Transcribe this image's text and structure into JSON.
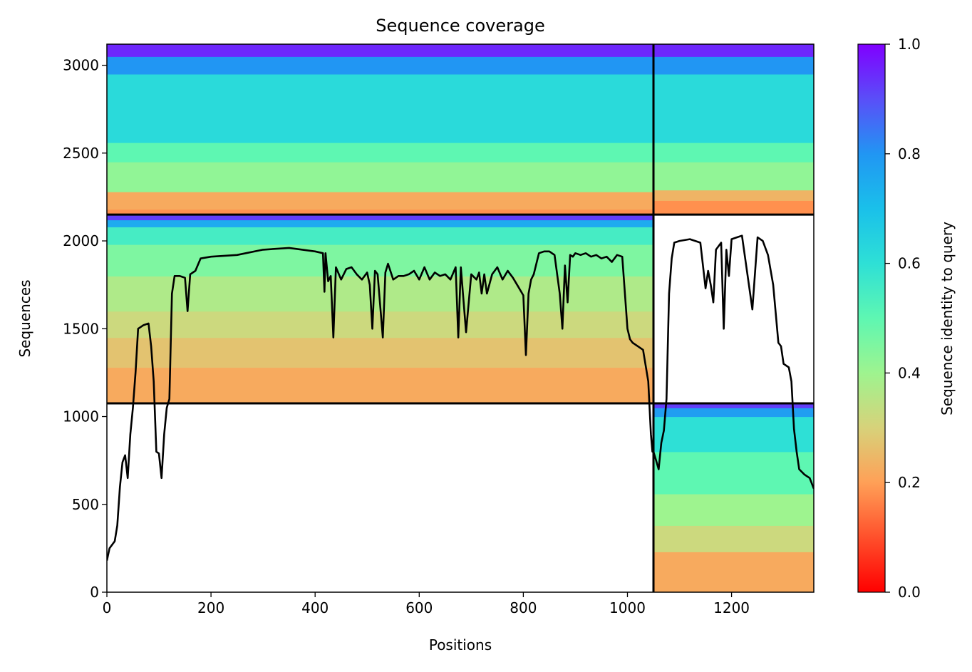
{
  "chart_data": {
    "type": "heatmap",
    "title": "Sequence coverage",
    "xlabel": "Positions",
    "ylabel": "Sequences",
    "xlim": [
      0,
      1358
    ],
    "ylim": [
      0,
      3120
    ],
    "xticks": [
      0,
      200,
      400,
      600,
      800,
      1000,
      1200
    ],
    "yticks": [
      0,
      500,
      1000,
      1500,
      2000,
      2500,
      3000
    ],
    "colorbar": {
      "label": "Sequence identity to query",
      "range": [
        0.0,
        1.0
      ],
      "ticks": [
        0.0,
        0.2,
        0.4,
        0.6,
        0.8,
        1.0
      ],
      "colormap": "rainbow_r"
    },
    "domain_boundaries": {
      "x": [
        1050
      ],
      "y": [
        1075,
        2150
      ]
    },
    "blocks": [
      {
        "x_range": [
          0,
          1050
        ],
        "y_range": [
          2150,
          3120
        ],
        "bands": [
          {
            "y": [
              2150,
              2180
            ],
            "identity": 0.18
          },
          {
            "y": [
              2180,
              2280
            ],
            "identity": 0.22
          },
          {
            "y": [
              2280,
              2450
            ],
            "identity": 0.42
          },
          {
            "y": [
              2450,
              2560
            ],
            "identity": 0.5
          },
          {
            "y": [
              2560,
              2950
            ],
            "identity": 0.62
          },
          {
            "y": [
              2950,
              3050
            ],
            "identity": 0.8
          },
          {
            "y": [
              3050,
              3120
            ],
            "identity": 0.95
          }
        ]
      },
      {
        "x_range": [
          1050,
          1358
        ],
        "y_range": [
          2150,
          3120
        ],
        "bands": [
          {
            "y": [
              2150,
              2230
            ],
            "identity": 0.18
          },
          {
            "y": [
              2230,
              2290
            ],
            "identity": 0.24
          },
          {
            "y": [
              2290,
              2450
            ],
            "identity": 0.42
          },
          {
            "y": [
              2450,
              2560
            ],
            "identity": 0.5
          },
          {
            "y": [
              2560,
              2950
            ],
            "identity": 0.62
          },
          {
            "y": [
              2950,
              3050
            ],
            "identity": 0.8
          },
          {
            "y": [
              3050,
              3120
            ],
            "identity": 0.95
          }
        ]
      },
      {
        "x_range": [
          0,
          1050
        ],
        "y_range": [
          1075,
          2150
        ],
        "bands": [
          {
            "y": [
              1075,
              1280
            ],
            "identity": 0.22
          },
          {
            "y": [
              1280,
              1450
            ],
            "identity": 0.27
          },
          {
            "y": [
              1450,
              1600
            ],
            "identity": 0.32
          },
          {
            "y": [
              1600,
              1800
            ],
            "identity": 0.37
          },
          {
            "y": [
              1800,
              1980
            ],
            "identity": 0.45
          },
          {
            "y": [
              1980,
              2080
            ],
            "identity": 0.55
          },
          {
            "y": [
              2080,
              2120
            ],
            "identity": 0.75
          },
          {
            "y": [
              2120,
              2150
            ],
            "identity": 0.92
          }
        ]
      },
      {
        "x_range": [
          1050,
          1358
        ],
        "y_range": [
          0,
          1075
        ],
        "bands": [
          {
            "y": [
              0,
              230
            ],
            "identity": 0.22
          },
          {
            "y": [
              230,
              380
            ],
            "identity": 0.32
          },
          {
            "y": [
              380,
              560
            ],
            "identity": 0.4
          },
          {
            "y": [
              560,
              800
            ],
            "identity": 0.5
          },
          {
            "y": [
              800,
              1000
            ],
            "identity": 0.6
          },
          {
            "y": [
              1000,
              1050
            ],
            "identity": 0.78
          },
          {
            "y": [
              1050,
              1075
            ],
            "identity": 0.92
          }
        ]
      }
    ],
    "coverage_line": {
      "x": [
        0,
        5,
        10,
        15,
        20,
        25,
        30,
        35,
        40,
        45,
        50,
        55,
        60,
        70,
        80,
        85,
        90,
        95,
        100,
        105,
        110,
        115,
        120,
        125,
        130,
        140,
        150,
        155,
        160,
        170,
        180,
        200,
        250,
        300,
        350,
        400,
        415,
        418,
        420,
        425,
        430,
        435,
        440,
        450,
        460,
        470,
        480,
        490,
        500,
        505,
        510,
        515,
        520,
        530,
        535,
        540,
        550,
        560,
        570,
        580,
        590,
        600,
        610,
        620,
        630,
        640,
        650,
        660,
        670,
        675,
        680,
        690,
        700,
        710,
        715,
        720,
        725,
        730,
        740,
        750,
        760,
        770,
        780,
        790,
        800,
        805,
        810,
        815,
        820,
        830,
        840,
        850,
        860,
        870,
        875,
        880,
        885,
        890,
        895,
        900,
        910,
        920,
        930,
        940,
        950,
        960,
        970,
        980,
        990,
        1000,
        1005,
        1010,
        1020,
        1030,
        1040,
        1045,
        1048,
        1050,
        1055,
        1060,
        1065,
        1070,
        1075,
        1080,
        1085,
        1090,
        1100,
        1120,
        1140,
        1150,
        1155,
        1160,
        1165,
        1170,
        1180,
        1185,
        1190,
        1195,
        1200,
        1210,
        1220,
        1240,
        1250,
        1255,
        1260,
        1270,
        1280,
        1290,
        1295,
        1300,
        1310,
        1315,
        1320,
        1325,
        1330,
        1340,
        1350,
        1358
      ],
      "y": [
        180,
        250,
        270,
        290,
        380,
        600,
        740,
        780,
        650,
        900,
        1050,
        1250,
        1500,
        1520,
        1530,
        1400,
        1200,
        800,
        790,
        650,
        900,
        1050,
        1100,
        1700,
        1800,
        1800,
        1790,
        1600,
        1810,
        1830,
        1900,
        1910,
        1920,
        1950,
        1960,
        1940,
        1930,
        1710,
        1930,
        1770,
        1800,
        1450,
        1850,
        1780,
        1840,
        1850,
        1810,
        1780,
        1820,
        1750,
        1500,
        1830,
        1810,
        1450,
        1820,
        1870,
        1780,
        1800,
        1800,
        1810,
        1830,
        1780,
        1850,
        1780,
        1820,
        1800,
        1810,
        1780,
        1850,
        1450,
        1850,
        1480,
        1810,
        1780,
        1820,
        1700,
        1810,
        1700,
        1810,
        1850,
        1780,
        1830,
        1790,
        1740,
        1690,
        1350,
        1700,
        1780,
        1810,
        1930,
        1940,
        1940,
        1920,
        1700,
        1500,
        1860,
        1650,
        1920,
        1910,
        1930,
        1920,
        1930,
        1910,
        1920,
        1900,
        1910,
        1880,
        1920,
        1910,
        1500,
        1440,
        1420,
        1400,
        1380,
        1200,
        900,
        800,
        800,
        750,
        700,
        850,
        920,
        1100,
        1700,
        1900,
        1990,
        2000,
        2010,
        1990,
        1730,
        1830,
        1750,
        1650,
        1950,
        1990,
        1500,
        1950,
        1800,
        2010,
        2020,
        2030,
        1610,
        2020,
        2010,
        2000,
        1920,
        1750,
        1420,
        1400,
        1300,
        1280,
        1200,
        930,
        800,
        700,
        670,
        650,
        590
      ]
    }
  }
}
